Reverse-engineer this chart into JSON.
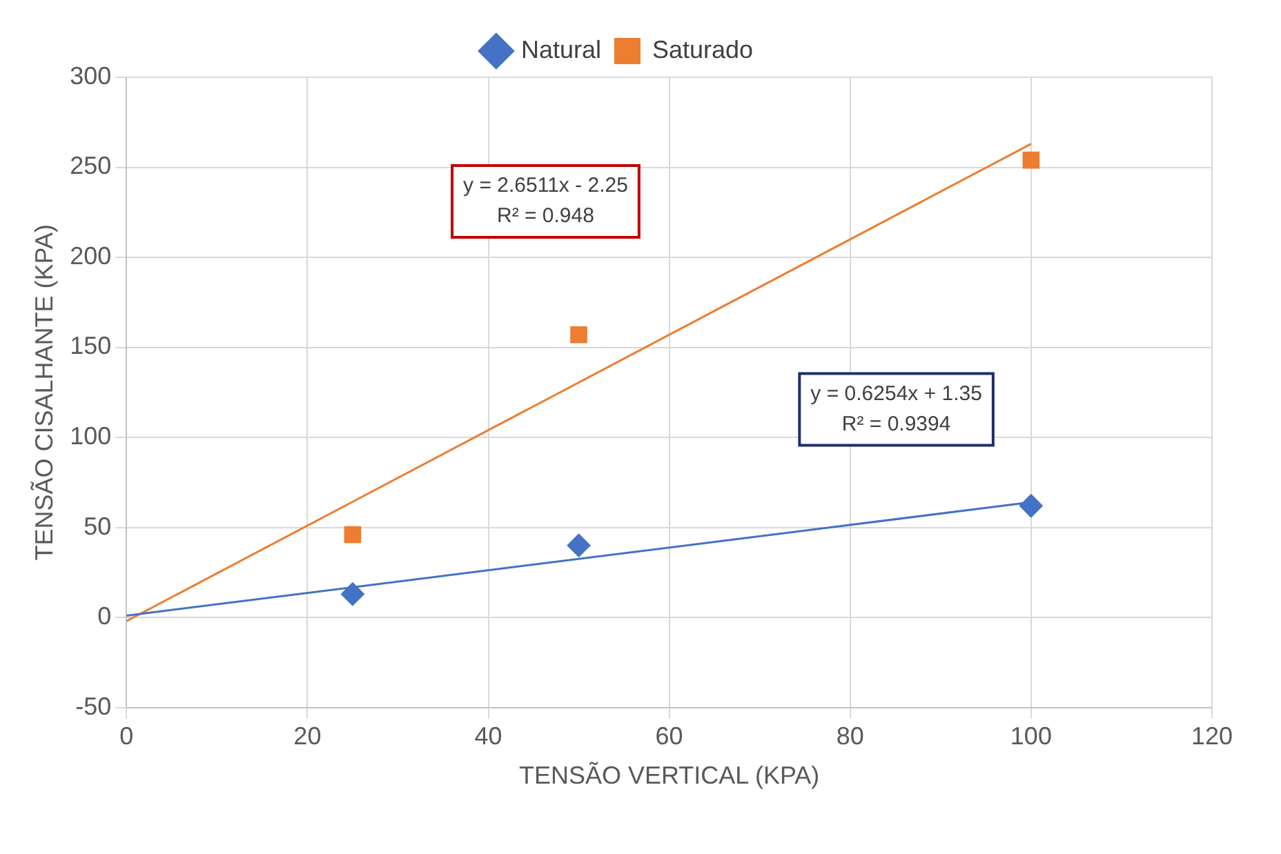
{
  "chart_data": {
    "type": "scatter",
    "xlabel": "TENSÃO VERTICAL (KPA)",
    "ylabel": "TENSÃO CISALHANTE (KPA)",
    "series": [
      {
        "name": "Natural",
        "color": "#4472c4",
        "marker": "diamond",
        "x": [
          25,
          50,
          100
        ],
        "values": [
          13,
          40,
          62
        ]
      },
      {
        "name": "Saturado",
        "color": "#ed7d31",
        "marker": "square",
        "x": [
          25,
          50,
          100
        ],
        "values": [
          46,
          157,
          254
        ]
      },
      {
        "type": "line",
        "color": "#4472c4",
        "marker": "none",
        "x": [
          0,
          100
        ],
        "values": [
          1,
          64
        ]
      },
      {
        "type": "line",
        "color": "#ed7d31",
        "marker": "none",
        "x": [
          0,
          100
        ],
        "values": [
          -2,
          263
        ]
      }
    ],
    "annotations": [
      "y = 2.6511x - 2.25\nR² = 0.948",
      "y = 0.6254x + 1.35\nR² = 0.9394"
    ],
    "xlim": [
      0,
      120
    ],
    "xticks": [
      0,
      20,
      40,
      60,
      80,
      100,
      120
    ],
    "ylim": [
      -50,
      300
    ],
    "yticks": [
      -50,
      0,
      50,
      100,
      150,
      200,
      250,
      300
    ],
    "grid": true,
    "legend": "top"
  }
}
